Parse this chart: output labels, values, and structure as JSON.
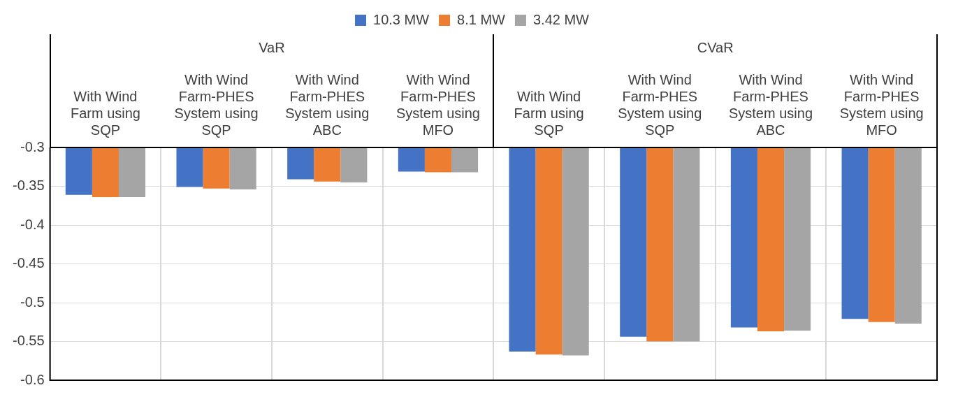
{
  "chart_data": {
    "type": "bar",
    "categories": [
      "With Wind Farm using SQP",
      "With Wind Farm-PHES System using SQP",
      "With Wind Farm-PHES System using ABC",
      "With Wind Farm-PHES System using MFO",
      "With Wind Farm using SQP",
      "With Wind Farm-PHES System using SQP",
      "With Wind Farm-PHES System using ABC",
      "With Wind Farm-PHES System using MFO"
    ],
    "series": [
      {
        "name": "10.3 MW",
        "color": "#4472c4",
        "values": [
          -0.361,
          -0.351,
          -0.341,
          -0.331,
          -0.563,
          -0.544,
          -0.532,
          -0.521
        ]
      },
      {
        "name": "8.1 MW",
        "color": "#ed7d31",
        "values": [
          -0.364,
          -0.353,
          -0.344,
          -0.332,
          -0.567,
          -0.55,
          -0.537,
          -0.525
        ]
      },
      {
        "name": "3.42 MW",
        "color": "#a5a5a5",
        "values": [
          -0.364,
          -0.354,
          -0.345,
          -0.332,
          -0.568,
          -0.55,
          -0.536,
          -0.527
        ]
      }
    ],
    "annotations": [
      "VaR",
      "CVaR"
    ],
    "ylim": [
      -0.6,
      -0.3
    ],
    "yticks": [
      -0.6,
      -0.55,
      -0.5,
      -0.45,
      -0.4,
      -0.35,
      -0.3
    ],
    "grid": true,
    "legend": "top"
  }
}
